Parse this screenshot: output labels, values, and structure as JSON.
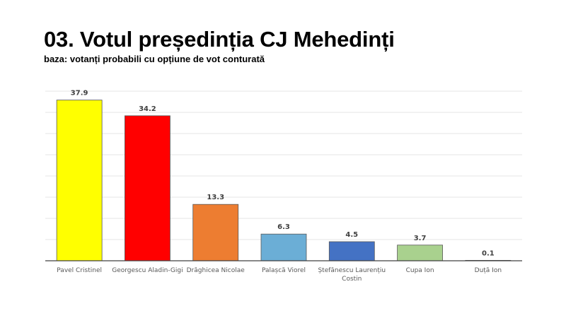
{
  "header": {
    "title": "03. Votul președinția CJ Mehedinți",
    "subtitle": "baza: votanți probabili cu opțiune de vot conturată"
  },
  "chart_data": {
    "type": "bar",
    "categories": [
      "Pavel Cristinel",
      "Georgescu Aladin-Gigi",
      "Drăghicea Nicolae",
      "Palașcă Viorel",
      "Ștefănescu Laurențiu Costin",
      "Cupa Ion",
      "Duță Ion"
    ],
    "category_lines": [
      [
        "Pavel Cristinel"
      ],
      [
        "Georgescu Aladin-Gigi"
      ],
      [
        "Drăghicea Nicolae"
      ],
      [
        "Palașcă Viorel"
      ],
      [
        "Ștefănescu Laurențiu",
        "Costin"
      ],
      [
        "Cupa Ion"
      ],
      [
        "Duță Ion"
      ]
    ],
    "values": [
      37.9,
      34.2,
      13.3,
      6.3,
      4.5,
      3.7,
      0.1
    ],
    "data_labels": [
      "37.9",
      "34.2",
      "13.3",
      "6.3",
      "4.5",
      "3.7",
      "0.1"
    ],
    "colors": [
      "#FFFF00",
      "#FF0000",
      "#ED7D31",
      "#6BAED6",
      "#4472C4",
      "#A9D18E",
      "#FFFF00"
    ],
    "ylim": [
      0,
      40
    ],
    "grid": true,
    "xlabel": "",
    "ylabel": ""
  }
}
